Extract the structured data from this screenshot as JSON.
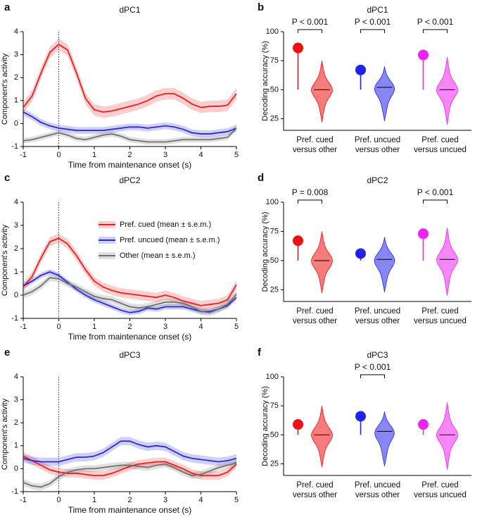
{
  "chart_data": [
    {
      "type": "line",
      "panel": "a",
      "title": "dPC1",
      "xlabel": "Time from maintenance onset (s)",
      "ylabel": "Component's activity",
      "xlim": [
        -1,
        5
      ],
      "xticks": [
        -1,
        0,
        1,
        2,
        3,
        4,
        5
      ],
      "ylim": [
        -1,
        4
      ],
      "yticks": [
        -1,
        0,
        1,
        2,
        3,
        4
      ],
      "vline_x": 0,
      "x": [
        -1,
        -0.75,
        -0.5,
        -0.25,
        0,
        0.25,
        0.5,
        0.75,
        1,
        1.25,
        1.5,
        1.75,
        2,
        2.25,
        2.5,
        2.75,
        3,
        3.25,
        3.5,
        3.75,
        4,
        4.25,
        4.5,
        4.75,
        5
      ],
      "series": [
        {
          "color": "#e8201f",
          "sem": 0.25,
          "values": [
            0.7,
            1.2,
            2.2,
            3.1,
            3.45,
            3.2,
            2.2,
            1.1,
            0.6,
            0.5,
            0.55,
            0.65,
            0.75,
            0.85,
            1.0,
            1.2,
            1.3,
            1.3,
            1.1,
            0.85,
            0.7,
            0.75,
            0.75,
            0.8,
            1.3
          ]
        },
        {
          "color": "#2a2ad8",
          "sem": 0.15,
          "values": [
            0.5,
            0.3,
            0.05,
            -0.1,
            -0.2,
            -0.25,
            -0.3,
            -0.3,
            -0.3,
            -0.3,
            -0.25,
            -0.2,
            -0.15,
            -0.15,
            -0.2,
            -0.15,
            -0.1,
            -0.15,
            -0.25,
            -0.4,
            -0.45,
            -0.45,
            -0.4,
            -0.35,
            -0.2
          ]
        },
        {
          "color": "#707070",
          "sem": 0.12,
          "values": [
            -0.75,
            -0.7,
            -0.6,
            -0.5,
            -0.4,
            -0.5,
            -0.65,
            -0.7,
            -0.6,
            -0.5,
            -0.45,
            -0.55,
            -0.7,
            -0.75,
            -0.8,
            -0.8,
            -0.8,
            -0.75,
            -0.7,
            -0.7,
            -0.7,
            -0.7,
            -0.65,
            -0.6,
            -0.2
          ]
        }
      ]
    },
    {
      "type": "violin",
      "panel": "b",
      "title": "dPC1",
      "ylabel": "Decoding accuracy (%)",
      "ylim": [
        15,
        100
      ],
      "yticks": [
        25,
        50,
        75,
        100
      ],
      "chance_level": 50,
      "categories": [
        [
          "Pref. cued",
          "versus other"
        ],
        [
          "Pref. uncued",
          "versus other"
        ],
        [
          "Pref. cued",
          "versus uncued"
        ]
      ],
      "colors": [
        "#ee1111",
        "#2222ee",
        "#ee22ee"
      ],
      "values": [
        86,
        67,
        80
      ],
      "chance_median": [
        50,
        52,
        50
      ],
      "chance_min": [
        22,
        23,
        20
      ],
      "chance_max": [
        75,
        70,
        78
      ],
      "annotations": [
        {
          "category": 0,
          "text": "P < 0.001"
        },
        {
          "category": 1,
          "text": "P < 0.001"
        },
        {
          "category": 2,
          "text": "P < 0.001"
        }
      ]
    },
    {
      "type": "line",
      "panel": "c",
      "title": "dPC2",
      "xlabel": "Time from maintenance onset (s)",
      "ylabel": "Component's activity",
      "xlim": [
        -1,
        5
      ],
      "xticks": [
        -1,
        0,
        1,
        2,
        3,
        4,
        5
      ],
      "ylim": [
        -1,
        4
      ],
      "yticks": [
        -1,
        0,
        1,
        2,
        3,
        4
      ],
      "vline_x": 0,
      "x": [
        -1,
        -0.75,
        -0.5,
        -0.25,
        0,
        0.25,
        0.5,
        0.75,
        1,
        1.25,
        1.5,
        1.75,
        2,
        2.25,
        2.5,
        2.75,
        3,
        3.25,
        3.5,
        3.75,
        4,
        4.25,
        4.5,
        4.75,
        5
      ],
      "series": [
        {
          "name": "Pref. cued (mean ± s.e.m.)",
          "color": "#e8201f",
          "sem": 0.2,
          "values": [
            0.35,
            0.8,
            1.6,
            2.3,
            2.45,
            2.2,
            1.7,
            1.1,
            0.6,
            0.35,
            0.2,
            0.1,
            0.05,
            0.0,
            -0.05,
            -0.1,
            0.0,
            -0.1,
            -0.25,
            -0.35,
            -0.45,
            -0.4,
            -0.35,
            -0.2,
            0.45
          ]
        },
        {
          "name": "Pref. uncued (mean ± s.e.m.)",
          "color": "#2a2ad8",
          "sem": 0.12,
          "values": [
            0.4,
            0.6,
            0.85,
            1.0,
            0.85,
            0.55,
            0.25,
            0.0,
            -0.2,
            -0.35,
            -0.5,
            -0.65,
            -0.75,
            -0.7,
            -0.55,
            -0.6,
            -0.5,
            -0.5,
            -0.5,
            -0.6,
            -0.7,
            -0.7,
            -0.6,
            -0.45,
            -0.1
          ]
        },
        {
          "name": "Other (mean ± s.e.m.)",
          "color": "#707070",
          "sem": 0.15,
          "values": [
            0.0,
            0.15,
            0.4,
            0.75,
            0.7,
            0.5,
            0.35,
            0.15,
            -0.05,
            -0.15,
            -0.2,
            -0.35,
            -0.5,
            -0.55,
            -0.5,
            -0.4,
            -0.3,
            -0.3,
            -0.35,
            -0.5,
            -0.7,
            -0.75,
            -0.6,
            -0.4,
            0.05
          ]
        }
      ]
    },
    {
      "type": "violin",
      "panel": "d",
      "title": "dPC2",
      "ylabel": "Decoding accuracy (%)",
      "ylim": [
        15,
        100
      ],
      "yticks": [
        25,
        50,
        75,
        100
      ],
      "chance_level": 50,
      "categories": [
        [
          "Pref. cued",
          "versus other"
        ],
        [
          "Pref. uncued",
          "versus other"
        ],
        [
          "Pref. cued",
          "versus uncued"
        ]
      ],
      "colors": [
        "#ee1111",
        "#2222ee",
        "#ee22ee"
      ],
      "values": [
        67,
        56,
        73
      ],
      "chance_median": [
        50,
        51,
        51
      ],
      "chance_min": [
        22,
        23,
        20
      ],
      "chance_max": [
        75,
        70,
        78
      ],
      "annotations": [
        {
          "category": 0,
          "text": "P = 0.008"
        },
        {
          "category": 2,
          "text": "P < 0.001"
        }
      ]
    },
    {
      "type": "line",
      "panel": "e",
      "title": "dPC3",
      "xlabel": "Time from maintenance onset (s)",
      "ylabel": "Component's activity",
      "xlim": [
        -1,
        5
      ],
      "xticks": [
        -1,
        0,
        1,
        2,
        3,
        4,
        5
      ],
      "ylim": [
        -1,
        4
      ],
      "yticks": [
        -1,
        0,
        1,
        2,
        3,
        4
      ],
      "vline_x": 0,
      "x": [
        -1,
        -0.75,
        -0.5,
        -0.25,
        0,
        0.25,
        0.5,
        0.75,
        1,
        1.25,
        1.5,
        1.75,
        2,
        2.25,
        2.5,
        2.75,
        3,
        3.25,
        3.5,
        3.75,
        4,
        4.25,
        4.5,
        4.75,
        5
      ],
      "series": [
        {
          "color": "#e8201f",
          "sem": 0.18,
          "values": [
            0.55,
            0.35,
            0.15,
            -0.05,
            -0.15,
            -0.2,
            -0.2,
            -0.25,
            -0.3,
            -0.3,
            -0.2,
            -0.05,
            0.1,
            0.2,
            0.25,
            0.3,
            0.3,
            0.15,
            0.0,
            -0.2,
            -0.3,
            -0.3,
            -0.3,
            -0.15,
            0.2
          ]
        },
        {
          "color": "#2a2ad8",
          "sem": 0.18,
          "values": [
            0.45,
            0.35,
            0.3,
            0.3,
            0.3,
            0.4,
            0.5,
            0.5,
            0.55,
            0.7,
            0.95,
            1.2,
            1.2,
            1.05,
            0.95,
            1.0,
            0.95,
            0.75,
            0.55,
            0.45,
            0.4,
            0.35,
            0.3,
            0.35,
            0.45
          ]
        },
        {
          "color": "#707070",
          "sem": 0.15,
          "values": [
            -0.6,
            -0.75,
            -0.8,
            -0.65,
            -0.35,
            -0.15,
            -0.05,
            0.0,
            0.0,
            0.05,
            0.1,
            0.15,
            0.15,
            0.1,
            0.05,
            0.15,
            0.2,
            0.05,
            -0.15,
            -0.3,
            -0.25,
            -0.1,
            0.05,
            0.15,
            0.25
          ]
        }
      ]
    },
    {
      "type": "violin",
      "panel": "f",
      "title": "dPC3",
      "ylabel": "Decoding accuracy (%)",
      "ylim": [
        15,
        100
      ],
      "yticks": [
        25,
        50,
        75,
        100
      ],
      "chance_level": 50,
      "categories": [
        [
          "Pref. cued",
          "versus other"
        ],
        [
          "Pref. uncued",
          "versus other"
        ],
        [
          "Pref. cued",
          "versus uncued"
        ]
      ],
      "colors": [
        "#ee1111",
        "#2222ee",
        "#ee22ee"
      ],
      "values": [
        59,
        66,
        59
      ],
      "chance_median": [
        50,
        53,
        50
      ],
      "chance_min": [
        22,
        23,
        20
      ],
      "chance_max": [
        75,
        70,
        78
      ],
      "annotations": [
        {
          "category": 1,
          "text": "P < 0.001"
        }
      ]
    }
  ]
}
